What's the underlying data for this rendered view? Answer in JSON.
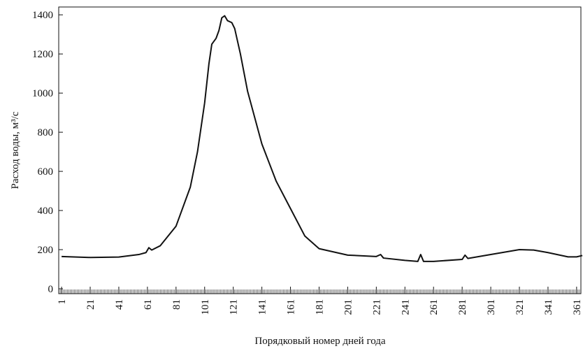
{
  "chart_data": {
    "type": "line",
    "xlabel": "Порядковый номер дней года",
    "ylabel": "Расход воды, м³/с",
    "x": [
      1,
      21,
      41,
      55,
      60,
      62,
      64,
      70,
      81,
      91,
      96,
      101,
      104,
      106,
      109,
      111,
      113,
      115,
      117,
      120,
      122,
      126,
      131,
      141,
      151,
      161,
      171,
      181,
      201,
      221,
      224,
      226,
      241,
      250,
      252,
      254,
      261,
      281,
      283,
      285,
      301,
      321,
      331,
      341,
      355,
      361,
      365
    ],
    "series": [
      {
        "color": "#111111",
        "values": [
          165,
          160,
          162,
          175,
          185,
          210,
          198,
          220,
          320,
          520,
          700,
          950,
          1150,
          1250,
          1280,
          1320,
          1385,
          1395,
          1370,
          1360,
          1330,
          1200,
          1010,
          740,
          550,
          410,
          270,
          205,
          172,
          165,
          175,
          157,
          145,
          140,
          175,
          140,
          140,
          150,
          172,
          155,
          175,
          200,
          198,
          185,
          163,
          163,
          170
        ]
      }
    ],
    "xlim": [
      -1,
      364
    ],
    "ylim": [
      -25,
      1440
    ],
    "xticks": [
      1,
      21,
      41,
      61,
      81,
      101,
      121,
      141,
      161,
      181,
      201,
      221,
      241,
      261,
      281,
      301,
      321,
      341,
      361
    ],
    "yticks": [
      0,
      200,
      400,
      600,
      800,
      1000,
      1200,
      1400
    ]
  }
}
